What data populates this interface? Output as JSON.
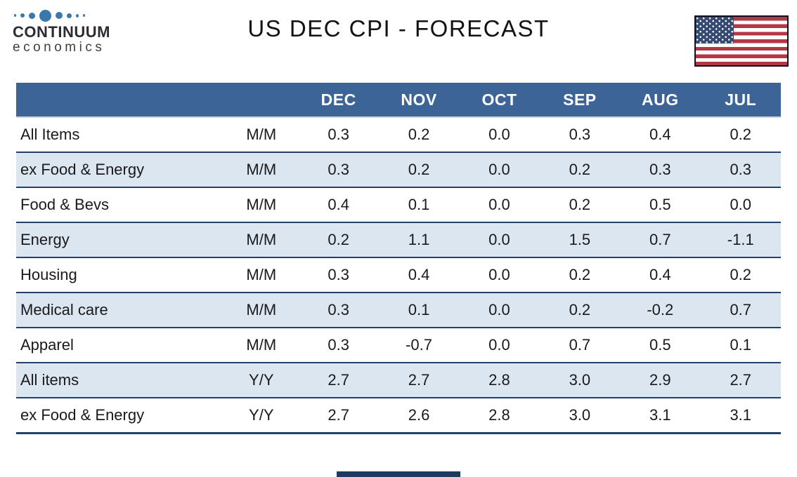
{
  "header": {
    "logo": {
      "brand_top": "CONTINUUM",
      "brand_bottom": "economics",
      "dot_icon": "logo-dots-icon"
    },
    "title": "US DEC CPI - FORECAST",
    "flag_icon": "us-flag-icon"
  },
  "table": {
    "columns": [
      "",
      "",
      "DEC",
      "NOV",
      "OCT",
      "SEP",
      "AUG",
      "JUL"
    ],
    "rows": [
      {
        "label": "All Items",
        "basis": "M/M",
        "values": [
          "0.3",
          "0.2",
          "0.0",
          "0.3",
          "0.4",
          "0.2"
        ]
      },
      {
        "label": "ex Food & Energy",
        "basis": "M/M",
        "values": [
          "0.3",
          "0.2",
          "0.0",
          "0.2",
          "0.3",
          "0.3"
        ]
      },
      {
        "label": "Food & Bevs",
        "basis": "M/M",
        "values": [
          "0.4",
          "0.1",
          "0.0",
          "0.2",
          "0.5",
          "0.0"
        ]
      },
      {
        "label": "Energy",
        "basis": "M/M",
        "values": [
          "0.2",
          "1.1",
          "0.0",
          "1.5",
          "0.7",
          "-1.1"
        ]
      },
      {
        "label": "Housing",
        "basis": "M/M",
        "values": [
          "0.3",
          "0.4",
          "0.0",
          "0.2",
          "0.4",
          "0.2"
        ]
      },
      {
        "label": "Medical care",
        "basis": "M/M",
        "values": [
          "0.3",
          "0.1",
          "0.0",
          "0.2",
          "-0.2",
          "0.7"
        ]
      },
      {
        "label": "Apparel",
        "basis": "M/M",
        "values": [
          "0.3",
          "-0.7",
          "0.0",
          "0.7",
          "0.5",
          "0.1"
        ]
      },
      {
        "label": "All items",
        "basis": "Y/Y",
        "values": [
          "2.7",
          "2.7",
          "2.8",
          "3.0",
          "2.9",
          "2.7"
        ]
      },
      {
        "label": "ex Food & Energy",
        "basis": "Y/Y",
        "values": [
          "2.7",
          "2.6",
          "2.8",
          "3.0",
          "3.1",
          "3.1"
        ]
      }
    ]
  },
  "chart_data": {
    "type": "table",
    "title": "US DEC CPI - FORECAST",
    "columns": [
      "DEC",
      "NOV",
      "OCT",
      "SEP",
      "AUG",
      "JUL"
    ],
    "rows": [
      {
        "label": "All Items",
        "basis": "M/M",
        "values": [
          0.3,
          0.2,
          0.0,
          0.3,
          0.4,
          0.2
        ]
      },
      {
        "label": "ex Food & Energy",
        "basis": "M/M",
        "values": [
          0.3,
          0.2,
          0.0,
          0.2,
          0.3,
          0.3
        ]
      },
      {
        "label": "Food & Bevs",
        "basis": "M/M",
        "values": [
          0.4,
          0.1,
          0.0,
          0.2,
          0.5,
          0.0
        ]
      },
      {
        "label": "Energy",
        "basis": "M/M",
        "values": [
          0.2,
          1.1,
          0.0,
          1.5,
          0.7,
          -1.1
        ]
      },
      {
        "label": "Housing",
        "basis": "M/M",
        "values": [
          0.3,
          0.4,
          0.0,
          0.2,
          0.4,
          0.2
        ]
      },
      {
        "label": "Medical care",
        "basis": "M/M",
        "values": [
          0.3,
          0.1,
          0.0,
          0.2,
          -0.2,
          0.7
        ]
      },
      {
        "label": "Apparel",
        "basis": "M/M",
        "values": [
          0.3,
          -0.7,
          0.0,
          0.7,
          0.5,
          0.1
        ]
      },
      {
        "label": "All items",
        "basis": "Y/Y",
        "values": [
          2.7,
          2.7,
          2.8,
          3.0,
          2.9,
          2.7
        ]
      },
      {
        "label": "ex Food & Energy",
        "basis": "Y/Y",
        "values": [
          2.7,
          2.6,
          2.8,
          3.0,
          3.1,
          3.1
        ]
      }
    ]
  },
  "colors": {
    "header_bg": "#3D6496",
    "row_alt_bg": "#DCE6F1",
    "row_border": "#21406B",
    "logo_dot": "#3878AE",
    "flag_red": "#B03945",
    "flag_blue": "#344A70",
    "bottom_bar": "#1E3A5F"
  }
}
